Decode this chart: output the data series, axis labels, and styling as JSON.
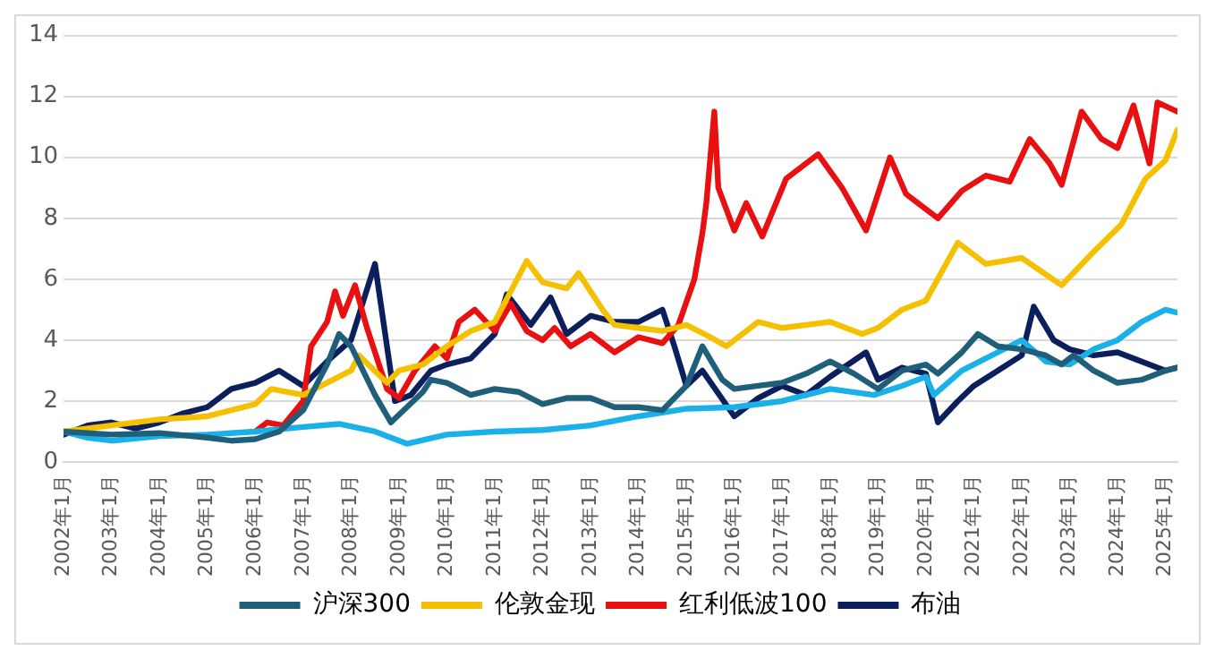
{
  "chart_data": {
    "type": "line",
    "xlim": [
      "2002-01",
      "2025-04"
    ],
    "ylim": [
      0,
      14
    ],
    "yticks": [
      0,
      2,
      4,
      6,
      8,
      10,
      12,
      14
    ],
    "xticks": [
      {
        "value": "2002-01",
        "label": "2002年1月"
      },
      {
        "value": "2003-01",
        "label": "2003年1月"
      },
      {
        "value": "2004-01",
        "label": "2004年1月"
      },
      {
        "value": "2005-01",
        "label": "2005年1月"
      },
      {
        "value": "2006-01",
        "label": "2006年1月"
      },
      {
        "value": "2007-01",
        "label": "2007年1月"
      },
      {
        "value": "2008-01",
        "label": "2008年1月"
      },
      {
        "value": "2009-01",
        "label": "2009年1月"
      },
      {
        "value": "2010-01",
        "label": "2010年1月"
      },
      {
        "value": "2011-01",
        "label": "2011年1月"
      },
      {
        "value": "2012-01",
        "label": "2012年1月"
      },
      {
        "value": "2013-01",
        "label": "2013年1月"
      },
      {
        "value": "2014-01",
        "label": "2014年1月"
      },
      {
        "value": "2015-01",
        "label": "2015年1月"
      },
      {
        "value": "2016-01",
        "label": "2016年1月"
      },
      {
        "value": "2017-01",
        "label": "2017年1月"
      },
      {
        "value": "2018-01",
        "label": "2018年1月"
      },
      {
        "value": "2019-01",
        "label": "2019年1月"
      },
      {
        "value": "2020-01",
        "label": "2020年1月"
      },
      {
        "value": "2021-01",
        "label": "2021年1月"
      },
      {
        "value": "2022-01",
        "label": "2022年1月"
      },
      {
        "value": "2023-01",
        "label": "2023年1月"
      },
      {
        "value": "2024-01",
        "label": "2024年1月"
      },
      {
        "value": "2025-01",
        "label": "2025年1月"
      }
    ],
    "grid": "y",
    "legend": "bottom",
    "marker": "none",
    "line_style": "solid",
    "series": [
      {
        "name": "沪深300",
        "color": "#1f5f7a",
        "x": [
          "2002-01",
          "2003-01",
          "2004-01",
          "2005-01",
          "2005-07",
          "2006-01",
          "2006-07",
          "2007-01",
          "2007-07",
          "2007-10",
          "2008-01",
          "2008-07",
          "2008-11",
          "2009-07",
          "2009-09",
          "2010-01",
          "2010-07",
          "2011-01",
          "2011-07",
          "2012-01",
          "2012-07",
          "2013-01",
          "2013-07",
          "2014-01",
          "2014-07",
          "2015-01",
          "2015-05",
          "2015-10",
          "2016-01",
          "2016-07",
          "2017-01",
          "2017-07",
          "2018-01",
          "2018-07",
          "2019-01",
          "2019-07",
          "2020-01",
          "2020-04",
          "2020-10",
          "2021-02",
          "2021-07",
          "2022-01",
          "2022-07",
          "2022-11",
          "2023-02",
          "2023-07",
          "2024-01",
          "2024-07",
          "2025-01",
          "2025-04"
        ],
        "values": [
          1.0,
          0.9,
          0.95,
          0.8,
          0.7,
          0.75,
          1.0,
          1.7,
          3.2,
          4.2,
          3.8,
          2.2,
          1.3,
          2.3,
          2.7,
          2.6,
          2.2,
          2.4,
          2.3,
          1.9,
          2.1,
          2.1,
          1.8,
          1.8,
          1.7,
          2.5,
          3.8,
          2.7,
          2.4,
          2.5,
          2.6,
          2.9,
          3.3,
          2.9,
          2.4,
          3.0,
          3.2,
          2.9,
          3.6,
          4.2,
          3.8,
          3.7,
          3.5,
          3.2,
          3.5,
          3.0,
          2.6,
          2.7,
          3.0,
          3.1
        ]
      },
      {
        "name": "伦敦金现",
        "color": "#f5c000",
        "x": [
          "2002-01",
          "2003-01",
          "2004-01",
          "2005-01",
          "2006-01",
          "2006-05",
          "2007-01",
          "2008-01",
          "2008-03",
          "2008-10",
          "2009-01",
          "2009-07",
          "2010-01",
          "2010-07",
          "2011-01",
          "2011-09",
          "2012-01",
          "2012-07",
          "2012-10",
          "2013-04",
          "2013-07",
          "2014-01",
          "2014-07",
          "2015-01",
          "2015-07",
          "2015-11",
          "2016-07",
          "2017-01",
          "2017-07",
          "2018-01",
          "2018-09",
          "2019-01",
          "2019-07",
          "2020-01",
          "2020-09",
          "2021-04",
          "2022-01",
          "2022-11",
          "2023-07",
          "2024-02",
          "2024-08",
          "2025-01",
          "2025-04"
        ],
        "values": [
          1.0,
          1.2,
          1.4,
          1.5,
          1.9,
          2.4,
          2.2,
          3.0,
          3.5,
          2.6,
          3.0,
          3.2,
          3.8,
          4.3,
          4.6,
          6.6,
          5.9,
          5.7,
          6.2,
          5.0,
          4.5,
          4.4,
          4.3,
          4.5,
          4.1,
          3.8,
          4.6,
          4.4,
          4.5,
          4.6,
          4.2,
          4.4,
          5.0,
          5.3,
          7.2,
          6.5,
          6.7,
          5.8,
          6.9,
          7.8,
          9.3,
          9.9,
          10.9
        ]
      },
      {
        "color": "#1ab0e8",
        "x": [
          "2002-01",
          "2002-07",
          "2003-01",
          "2004-01",
          "2005-01",
          "2006-01",
          "2007-01",
          "2007-10",
          "2008-07",
          "2009-03",
          "2010-01",
          "2011-01",
          "2012-01",
          "2013-01",
          "2014-01",
          "2015-01",
          "2016-01",
          "2017-01",
          "2018-01",
          "2018-12",
          "2019-07",
          "2020-01",
          "2020-03",
          "2020-10",
          "2021-07",
          "2022-01",
          "2022-07",
          "2023-01",
          "2023-07",
          "2024-01",
          "2024-07",
          "2025-01",
          "2025-04"
        ],
        "values": [
          1.0,
          0.8,
          0.7,
          0.85,
          0.9,
          1.0,
          1.15,
          1.25,
          1.0,
          0.6,
          0.9,
          1.0,
          1.05,
          1.2,
          1.5,
          1.75,
          1.8,
          2.0,
          2.4,
          2.2,
          2.5,
          2.8,
          2.2,
          3.0,
          3.6,
          4.0,
          3.3,
          3.2,
          3.7,
          4.0,
          4.6,
          5.0,
          4.9
        ]
      },
      {
        "name": "红利低波100",
        "color": "#e81010",
        "x": [
          "2006-01",
          "2006-04",
          "2006-08",
          "2007-01",
          "2007-03",
          "2007-07",
          "2007-09",
          "2007-11",
          "2008-02",
          "2008-05",
          "2008-10",
          "2009-01",
          "2009-05",
          "2009-10",
          "2010-01",
          "2010-04",
          "2010-08",
          "2011-01",
          "2011-05",
          "2011-09",
          "2012-01",
          "2012-04",
          "2012-08",
          "2013-01",
          "2013-07",
          "2014-01",
          "2014-07",
          "2014-11",
          "2015-03",
          "2015-05",
          "2015-06",
          "2015-08",
          "2015-09",
          "2016-01",
          "2016-04",
          "2016-08",
          "2017-02",
          "2017-10",
          "2018-04",
          "2018-10",
          "2019-04",
          "2019-08",
          "2020-04",
          "2020-10",
          "2021-04",
          "2021-10",
          "2022-03",
          "2022-08",
          "2022-11",
          "2023-04",
          "2023-09",
          "2024-01",
          "2024-05",
          "2024-09",
          "2024-11",
          "2025-04"
        ],
        "values": [
          1.0,
          1.3,
          1.2,
          2.0,
          3.8,
          4.6,
          5.6,
          4.8,
          5.8,
          4.4,
          2.4,
          2.1,
          3.0,
          3.8,
          3.4,
          4.6,
          5.0,
          4.3,
          5.2,
          4.3,
          4.0,
          4.4,
          3.8,
          4.2,
          3.6,
          4.1,
          3.9,
          4.5,
          6.0,
          7.5,
          8.5,
          11.5,
          9.0,
          7.6,
          8.5,
          7.4,
          9.3,
          10.1,
          9.0,
          7.6,
          10.0,
          8.8,
          8.0,
          8.9,
          9.4,
          9.2,
          10.6,
          9.8,
          9.1,
          11.5,
          10.6,
          10.3,
          11.7,
          9.8,
          11.8,
          11.5
        ]
      },
      {
        "name": "布油",
        "color": "#0a1f5c",
        "x": [
          "2002-01",
          "2002-07",
          "2003-01",
          "2003-07",
          "2004-01",
          "2004-07",
          "2005-01",
          "2005-07",
          "2006-01",
          "2006-07",
          "2007-01",
          "2007-07",
          "2008-01",
          "2008-07",
          "2008-12",
          "2009-04",
          "2009-09",
          "2010-01",
          "2010-07",
          "2011-01",
          "2011-04",
          "2011-10",
          "2012-03",
          "2012-07",
          "2013-01",
          "2013-07",
          "2014-01",
          "2014-07",
          "2014-10",
          "2015-01",
          "2015-05",
          "2016-01",
          "2016-07",
          "2017-01",
          "2017-07",
          "2018-01",
          "2018-10",
          "2019-01",
          "2019-07",
          "2020-01",
          "2020-04",
          "2020-09",
          "2021-01",
          "2021-07",
          "2022-01",
          "2022-04",
          "2022-09",
          "2023-01",
          "2023-07",
          "2024-01",
          "2024-07",
          "2025-01",
          "2025-04"
        ],
        "values": [
          0.9,
          1.2,
          1.3,
          1.1,
          1.3,
          1.6,
          1.8,
          2.4,
          2.6,
          3.0,
          2.5,
          3.3,
          4.0,
          6.5,
          2.0,
          2.2,
          3.0,
          3.2,
          3.4,
          4.2,
          5.5,
          4.5,
          5.4,
          4.2,
          4.8,
          4.6,
          4.6,
          5.0,
          3.8,
          2.5,
          3.0,
          1.5,
          2.1,
          2.5,
          2.2,
          2.8,
          3.6,
          2.7,
          3.1,
          2.9,
          1.3,
          2.0,
          2.5,
          3.0,
          3.5,
          5.1,
          4.0,
          3.7,
          3.5,
          3.6,
          3.3,
          3.0,
          3.1
        ]
      }
    ]
  }
}
